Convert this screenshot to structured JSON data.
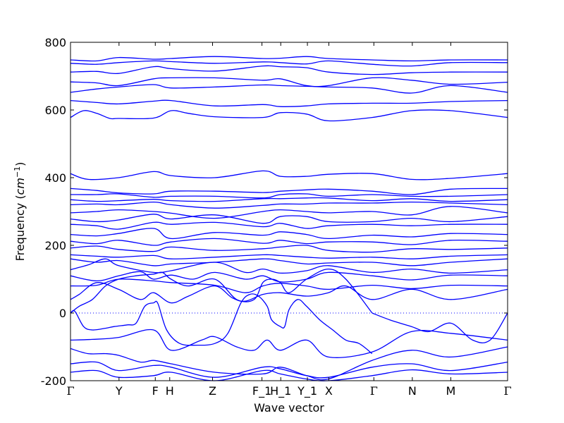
{
  "chart_data": {
    "type": "line",
    "title": "",
    "xlabel": "Wave vector",
    "ylabel_prefix": "Frequency (",
    "ylabel_unit": "cm",
    "ylabel_exp": "−1",
    "ylabel_suffix": ")",
    "ylim": [
      -200,
      800
    ],
    "yticks": [
      -200,
      0,
      200,
      400,
      600,
      800
    ],
    "grid": false,
    "zero_line": true,
    "line_color": "#0000ff",
    "x_ticks": [
      {
        "label": "Γ",
        "x": 0.0,
        "glyph": true
      },
      {
        "label": "Y",
        "x": 0.111,
        "glyph": false
      },
      {
        "label": "F",
        "x": 0.194,
        "glyph": false
      },
      {
        "label": "H",
        "x": 0.227,
        "glyph": false
      },
      {
        "label": "Z",
        "x": 0.325,
        "glyph": false
      },
      {
        "label": "F_1",
        "x": 0.438,
        "glyph": false
      },
      {
        "label": "H_1",
        "x": 0.481,
        "glyph": false
      },
      {
        "label": "Y_1",
        "x": 0.542,
        "glyph": false
      },
      {
        "label": "X",
        "x": 0.591,
        "glyph": false
      },
      {
        "label": "Γ",
        "x": 0.694,
        "glyph": true
      },
      {
        "label": "N",
        "x": 0.782,
        "glyph": false
      },
      {
        "label": "M",
        "x": 0.87,
        "glyph": false
      },
      {
        "label": "Γ",
        "x": 1.0,
        "glyph": true
      }
    ],
    "bands": [
      {
        "x": [
          0,
          0.06,
          0.11,
          0.19,
          0.23,
          0.33,
          0.44,
          0.48,
          0.54,
          0.59,
          0.69,
          0.78,
          0.87,
          1.0
        ],
        "y": [
          748,
          745,
          755,
          750,
          752,
          758,
          752,
          753,
          758,
          752,
          748,
          745,
          748,
          748
        ]
      },
      {
        "x": [
          0,
          0.06,
          0.11,
          0.19,
          0.23,
          0.33,
          0.44,
          0.48,
          0.54,
          0.59,
          0.69,
          0.78,
          0.87,
          1.0
        ],
        "y": [
          738,
          735,
          740,
          745,
          743,
          738,
          742,
          740,
          736,
          745,
          735,
          730,
          740,
          740
        ]
      },
      {
        "x": [
          0,
          0.06,
          0.11,
          0.19,
          0.23,
          0.33,
          0.44,
          0.48,
          0.54,
          0.59,
          0.69,
          0.78,
          0.87,
          1.0
        ],
        "y": [
          712,
          714,
          708,
          728,
          722,
          715,
          730,
          728,
          725,
          712,
          705,
          710,
          712,
          712
        ]
      },
      {
        "x": [
          0,
          0.06,
          0.11,
          0.19,
          0.23,
          0.33,
          0.44,
          0.48,
          0.54,
          0.59,
          0.69,
          0.78,
          0.87,
          1.0
        ],
        "y": [
          683,
          680,
          672,
          692,
          695,
          695,
          688,
          692,
          672,
          672,
          695,
          688,
          676,
          682
        ]
      },
      {
        "x": [
          0,
          0.06,
          0.11,
          0.19,
          0.23,
          0.33,
          0.44,
          0.48,
          0.54,
          0.59,
          0.69,
          0.78,
          0.87,
          1.0
        ],
        "y": [
          652,
          662,
          668,
          675,
          665,
          668,
          674,
          672,
          670,
          668,
          665,
          650,
          672,
          652
        ]
      },
      {
        "x": [
          0,
          0.06,
          0.11,
          0.19,
          0.23,
          0.33,
          0.44,
          0.48,
          0.54,
          0.59,
          0.69,
          0.78,
          0.87,
          1.0
        ],
        "y": [
          628,
          622,
          618,
          626,
          628,
          612,
          616,
          610,
          612,
          618,
          620,
          620,
          625,
          628
        ]
      },
      {
        "x": [
          0,
          0.03,
          0.06,
          0.09,
          0.11,
          0.19,
          0.23,
          0.27,
          0.33,
          0.44,
          0.48,
          0.54,
          0.59,
          0.69,
          0.78,
          0.87,
          1.0
        ],
        "y": [
          578,
          598,
          590,
          575,
          575,
          576,
          598,
          590,
          580,
          578,
          592,
          588,
          568,
          578,
          598,
          598,
          578
        ]
      },
      {
        "x": [
          0,
          0.04,
          0.11,
          0.19,
          0.23,
          0.33,
          0.44,
          0.48,
          0.54,
          0.59,
          0.69,
          0.78,
          0.87,
          1.0
        ],
        "y": [
          412,
          395,
          400,
          418,
          406,
          400,
          420,
          404,
          404,
          410,
          412,
          395,
          398,
          412
        ]
      },
      {
        "x": [
          0,
          0.06,
          0.11,
          0.19,
          0.23,
          0.33,
          0.44,
          0.48,
          0.54,
          0.59,
          0.69,
          0.78,
          0.87,
          1.0
        ],
        "y": [
          368,
          362,
          355,
          352,
          360,
          360,
          356,
          360,
          364,
          366,
          360,
          350,
          366,
          368
        ]
      },
      {
        "x": [
          0,
          0.06,
          0.11,
          0.19,
          0.23,
          0.33,
          0.44,
          0.48,
          0.54,
          0.59,
          0.69,
          0.78,
          0.87,
          1.0
        ],
        "y": [
          350,
          350,
          352,
          342,
          345,
          345,
          340,
          350,
          352,
          345,
          350,
          345,
          345,
          350
        ]
      },
      {
        "x": [
          0,
          0.06,
          0.11,
          0.19,
          0.23,
          0.33,
          0.44,
          0.48,
          0.54,
          0.59,
          0.69,
          0.78,
          0.87,
          1.0
        ],
        "y": [
          335,
          330,
          332,
          336,
          332,
          330,
          338,
          338,
          340,
          340,
          332,
          338,
          330,
          335
        ]
      },
      {
        "x": [
          0,
          0.06,
          0.11,
          0.19,
          0.23,
          0.33,
          0.44,
          0.48,
          0.54,
          0.59,
          0.69,
          0.78,
          0.87,
          1.0
        ],
        "y": [
          320,
          322,
          320,
          328,
          320,
          310,
          318,
          322,
          322,
          325,
          325,
          328,
          325,
          320
        ]
      },
      {
        "x": [
          0,
          0.06,
          0.11,
          0.19,
          0.23,
          0.33,
          0.44,
          0.48,
          0.54,
          0.59,
          0.69,
          0.78,
          0.87,
          1.0
        ],
        "y": [
          296,
          300,
          305,
          300,
          295,
          280,
          300,
          305,
          300,
          296,
          300,
          290,
          315,
          296
        ]
      },
      {
        "x": [
          0,
          0.06,
          0.11,
          0.19,
          0.23,
          0.33,
          0.44,
          0.48,
          0.54,
          0.59,
          0.69,
          0.78,
          0.87,
          1.0
        ],
        "y": [
          278,
          270,
          275,
          292,
          278,
          290,
          265,
          285,
          285,
          270,
          270,
          280,
          270,
          285
        ]
      },
      {
        "x": [
          0,
          0.06,
          0.11,
          0.19,
          0.23,
          0.33,
          0.44,
          0.48,
          0.54,
          0.59,
          0.69,
          0.78,
          0.87,
          1.0
        ],
        "y": [
          262,
          258,
          248,
          268,
          262,
          268,
          255,
          265,
          250,
          258,
          262,
          258,
          262,
          262
        ]
      },
      {
        "x": [
          0,
          0.06,
          0.11,
          0.19,
          0.23,
          0.33,
          0.44,
          0.48,
          0.54,
          0.59,
          0.69,
          0.78,
          0.87,
          1.0
        ],
        "y": [
          232,
          228,
          235,
          250,
          220,
          238,
          230,
          240,
          232,
          220,
          230,
          225,
          235,
          232
        ]
      },
      {
        "x": [
          0,
          0.06,
          0.11,
          0.19,
          0.23,
          0.33,
          0.44,
          0.48,
          0.54,
          0.59,
          0.69,
          0.78,
          0.87,
          1.0
        ],
        "y": [
          212,
          205,
          215,
          200,
          210,
          220,
          206,
          215,
          205,
          210,
          210,
          202,
          215,
          212
        ]
      },
      {
        "x": [
          0,
          0.06,
          0.11,
          0.19,
          0.23,
          0.33,
          0.44,
          0.48,
          0.54,
          0.59,
          0.69,
          0.78,
          0.87,
          1.0
        ],
        "y": [
          192,
          198,
          188,
          182,
          195,
          185,
          190,
          195,
          200,
          185,
          180,
          190,
          188,
          192
        ]
      },
      {
        "x": [
          0,
          0.06,
          0.11,
          0.19,
          0.23,
          0.33,
          0.44,
          0.48,
          0.54,
          0.59,
          0.69,
          0.78,
          0.87,
          1.0
        ],
        "y": [
          172,
          168,
          165,
          170,
          160,
          165,
          172,
          170,
          165,
          162,
          165,
          160,
          168,
          172
        ]
      },
      {
        "x": [
          0,
          0.06,
          0.11,
          0.19,
          0.23,
          0.33,
          0.44,
          0.48,
          0.54,
          0.59,
          0.69,
          0.78,
          0.87,
          1.0
        ],
        "y": [
          160,
          150,
          155,
          140,
          145,
          150,
          160,
          155,
          145,
          148,
          150,
          140,
          150,
          160
        ]
      },
      {
        "x": [
          0,
          0.04,
          0.08,
          0.11,
          0.19,
          0.23,
          0.33,
          0.4,
          0.44,
          0.48,
          0.54,
          0.59,
          0.69,
          0.78,
          0.87,
          1.0
        ],
        "y": [
          128,
          142,
          160,
          140,
          120,
          125,
          150,
          120,
          130,
          118,
          125,
          140,
          120,
          130,
          118,
          128
        ]
      },
      {
        "x": [
          0,
          0.06,
          0.11,
          0.16,
          0.19,
          0.23,
          0.28,
          0.33,
          0.4,
          0.44,
          0.48,
          0.54,
          0.59,
          0.69,
          0.78,
          0.87,
          1.0
        ],
        "y": [
          110,
          95,
          110,
          122,
          100,
          112,
          100,
          120,
          100,
          110,
          92,
          100,
          120,
          110,
          98,
          112,
          110
        ]
      },
      {
        "x": [
          0,
          0.06,
          0.11,
          0.19,
          0.23,
          0.33,
          0.4,
          0.44,
          0.48,
          0.54,
          0.59,
          0.69,
          0.78,
          0.87,
          1.0
        ],
        "y": [
          80,
          82,
          100,
          95,
          90,
          82,
          60,
          80,
          88,
          80,
          70,
          82,
          72,
          82,
          80
        ]
      },
      {
        "x": [
          0,
          0.02,
          0.06,
          0.11,
          0.16,
          0.19,
          0.23,
          0.27,
          0.33,
          0.37,
          0.4,
          0.44,
          0.48,
          0.54,
          0.59,
          0.63,
          0.69,
          0.78,
          0.87,
          1.0
        ],
        "y": [
          40,
          55,
          90,
          70,
          40,
          60,
          30,
          50,
          80,
          45,
          35,
          55,
          60,
          50,
          60,
          80,
          40,
          70,
          40,
          70
        ]
      },
      {
        "x": [
          0,
          0.02,
          0.05,
          0.08,
          0.11,
          0.15,
          0.19,
          0.21,
          0.23,
          0.27,
          0.33,
          0.38,
          0.42,
          0.44,
          0.46,
          0.48,
          0.5,
          0.54,
          0.59,
          0.63,
          0.69
        ],
        "y": [
          0,
          20,
          40,
          80,
          100,
          110,
          115,
          120,
          100,
          80,
          100,
          40,
          40,
          90,
          100,
          90,
          60,
          100,
          130,
          100,
          0
        ]
      },
      {
        "x": [
          0,
          0.01,
          0.03,
          0.05,
          0.08,
          0.1,
          0.13,
          0.15,
          0.17,
          0.19,
          0.2,
          0.22,
          0.25,
          0.29,
          0.33,
          0.36,
          0.39,
          0.41,
          0.43,
          0.45,
          0.46,
          0.48,
          0.49,
          0.5,
          0.52,
          0.54,
          0.57,
          0.6,
          0.63,
          0.66,
          0.69
        ],
        "y": [
          0,
          5,
          -40,
          -50,
          -45,
          -40,
          -35,
          -30,
          20,
          30,
          28,
          -50,
          -90,
          -95,
          -90,
          -60,
          30,
          55,
          50,
          20,
          -20,
          -40,
          -40,
          10,
          40,
          20,
          -20,
          -50,
          -80,
          -90,
          -120
        ]
      },
      {
        "x": [
          0.69,
          0.73,
          0.78,
          0.82,
          0.87,
          0.92,
          0.96,
          1.0
        ],
        "y": [
          0,
          -20,
          -40,
          -55,
          -30,
          -80,
          -80,
          0
        ]
      },
      {
        "x": [
          0,
          0.05,
          0.11,
          0.19,
          0.23,
          0.3,
          0.33,
          0.38,
          0.42,
          0.45,
          0.48,
          0.54,
          0.59,
          0.69,
          0.78,
          0.87,
          1.0
        ],
        "y": [
          -80,
          -78,
          -72,
          -50,
          -110,
          -80,
          -70,
          -100,
          -110,
          -80,
          -110,
          -80,
          -130,
          -115,
          -55,
          -60,
          -80
        ]
      },
      {
        "x": [
          0,
          0.04,
          0.08,
          0.11,
          0.16,
          0.19,
          0.23,
          0.33,
          0.44,
          0.48,
          0.54,
          0.59,
          0.69,
          0.78,
          0.87,
          1.0
        ],
        "y": [
          -105,
          -120,
          -120,
          -125,
          -145,
          -140,
          -150,
          -175,
          -180,
          -160,
          -185,
          -195,
          -140,
          -110,
          -130,
          -100
        ]
      },
      {
        "x": [
          0,
          0.06,
          0.11,
          0.19,
          0.23,
          0.33,
          0.44,
          0.48,
          0.54,
          0.59,
          0.69,
          0.78,
          0.87,
          1.0
        ],
        "y": [
          -150,
          -145,
          -170,
          -155,
          -160,
          -190,
          -160,
          -165,
          -185,
          -190,
          -160,
          -150,
          -170,
          -145
        ]
      },
      {
        "x": [
          0,
          0.06,
          0.11,
          0.19,
          0.23,
          0.33,
          0.44,
          0.48,
          0.54,
          0.59,
          0.69,
          0.78,
          0.87,
          1.0
        ],
        "y": [
          -175,
          -170,
          -190,
          -185,
          -175,
          -200,
          -170,
          -180,
          -195,
          -200,
          -185,
          -168,
          -180,
          -175
        ]
      }
    ]
  }
}
